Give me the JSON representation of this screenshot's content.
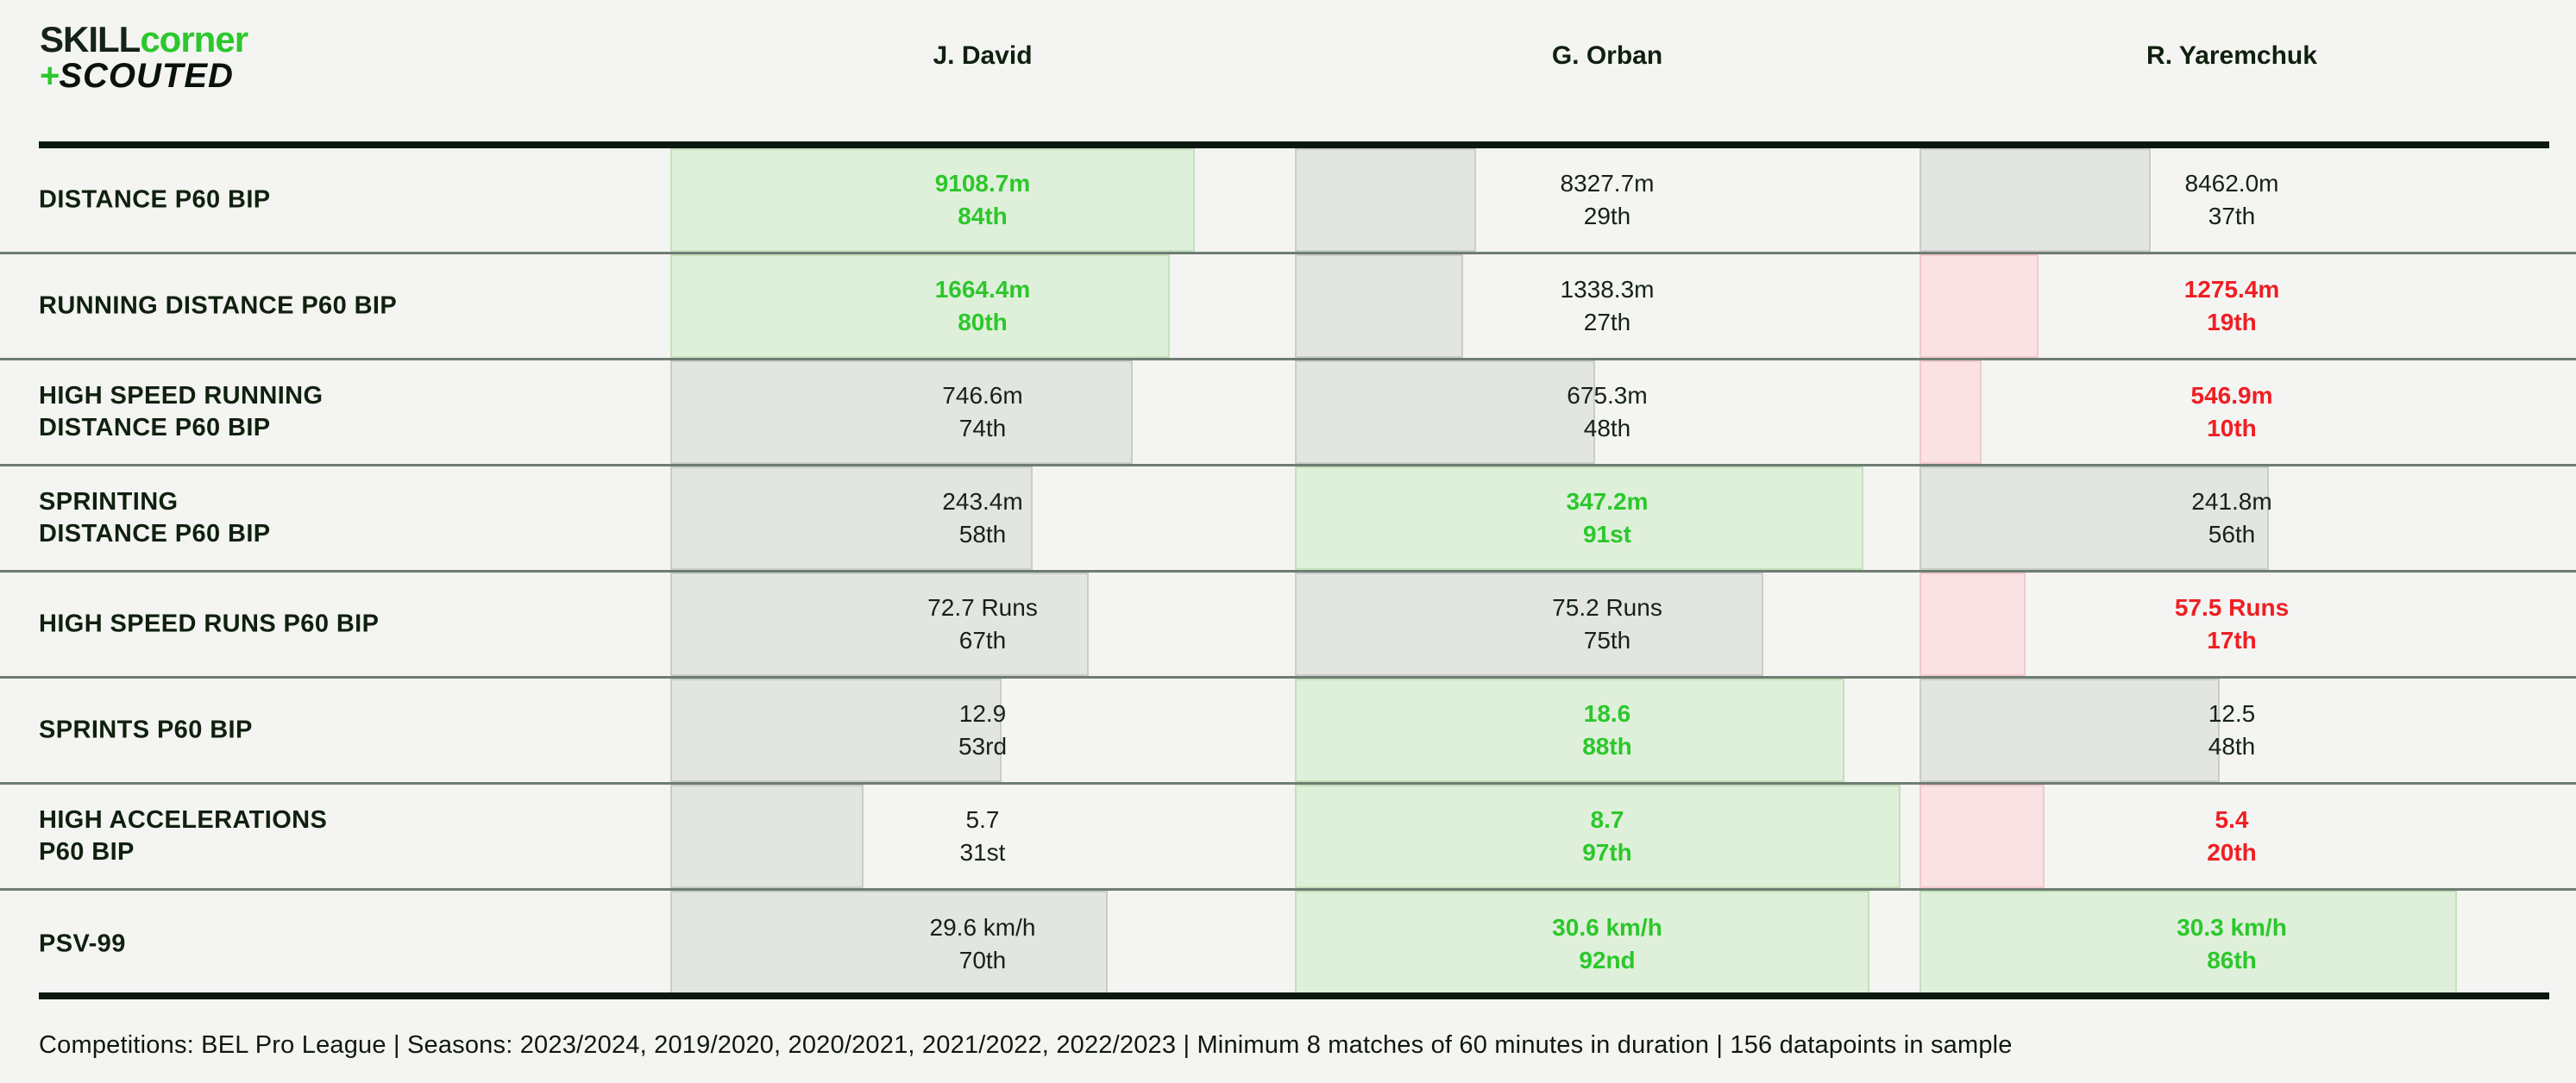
{
  "logo": {
    "line1_dark": "SKILL",
    "line1_green": "corner",
    "plus": "+",
    "line2": "SCOUTED"
  },
  "players": [
    "J. David",
    "G. Orban",
    "R. Yaremchuk"
  ],
  "footer_text": "Competitions: BEL Pro League | Seasons: 2023/2024, 2019/2020, 2020/2021, 2021/2022, 2022/2023 | Minimum 8 matches of 60 minutes in duration | 156 datapoints in sample",
  "colors": {
    "accent_green": "#2cc72c",
    "accent_red": "#f01e23",
    "dark": "#0e1c12",
    "bar_good_fill": "#dff0da",
    "bar_neutral_fill": "#e2e5e1",
    "bar_bad_fill": "#f9e1e4",
    "background": "#f4f5f2"
  },
  "chart_data": {
    "type": "bar",
    "orientation": "horizontal",
    "scale": "bar width = percentile of 0-100 column width",
    "legend_position": "none",
    "grid": false,
    "columns": [
      "J. David",
      "G. Orban",
      "R. Yaremchuk"
    ],
    "metrics": [
      {
        "label_lines": [
          "DISTANCE P60 BIP"
        ],
        "cells": [
          {
            "value": "9108.7m",
            "percentile": 84,
            "rank_label": "84th",
            "status": "good"
          },
          {
            "value": "8327.7m",
            "percentile": 29,
            "rank_label": "29th",
            "status": "neutral"
          },
          {
            "value": "8462.0m",
            "percentile": 37,
            "rank_label": "37th",
            "status": "neutral"
          }
        ]
      },
      {
        "label_lines": [
          "RUNNING DISTANCE P60 BIP"
        ],
        "cells": [
          {
            "value": "1664.4m",
            "percentile": 80,
            "rank_label": "80th",
            "status": "good"
          },
          {
            "value": "1338.3m",
            "percentile": 27,
            "rank_label": "27th",
            "status": "neutral"
          },
          {
            "value": "1275.4m",
            "percentile": 19,
            "rank_label": "19th",
            "status": "bad"
          }
        ]
      },
      {
        "label_lines": [
          "HIGH SPEED RUNNING",
          "DISTANCE P60 BIP"
        ],
        "cells": [
          {
            "value": "746.6m",
            "percentile": 74,
            "rank_label": "74th",
            "status": "neutral"
          },
          {
            "value": "675.3m",
            "percentile": 48,
            "rank_label": "48th",
            "status": "neutral"
          },
          {
            "value": "546.9m",
            "percentile": 10,
            "rank_label": "10th",
            "status": "bad"
          }
        ]
      },
      {
        "label_lines": [
          "SPRINTING",
          "DISTANCE P60 BIP"
        ],
        "cells": [
          {
            "value": "243.4m",
            "percentile": 58,
            "rank_label": "58th",
            "status": "neutral"
          },
          {
            "value": "347.2m",
            "percentile": 91,
            "rank_label": "91st",
            "status": "good"
          },
          {
            "value": "241.8m",
            "percentile": 56,
            "rank_label": "56th",
            "status": "neutral"
          }
        ]
      },
      {
        "label_lines": [
          "HIGH SPEED RUNS P60 BIP"
        ],
        "cells": [
          {
            "value": "72.7 Runs",
            "percentile": 67,
            "rank_label": "67th",
            "status": "neutral"
          },
          {
            "value": "75.2 Runs",
            "percentile": 75,
            "rank_label": "75th",
            "status": "neutral"
          },
          {
            "value": "57.5 Runs",
            "percentile": 17,
            "rank_label": "17th",
            "status": "bad"
          }
        ]
      },
      {
        "label_lines": [
          "SPRINTS P60 BIP"
        ],
        "cells": [
          {
            "value": "12.9",
            "percentile": 53,
            "rank_label": "53rd",
            "status": "neutral"
          },
          {
            "value": "18.6",
            "percentile": 88,
            "rank_label": "88th",
            "status": "good"
          },
          {
            "value": "12.5",
            "percentile": 48,
            "rank_label": "48th",
            "status": "neutral"
          }
        ]
      },
      {
        "label_lines": [
          "HIGH ACCELERATIONS",
          "P60 BIP"
        ],
        "cells": [
          {
            "value": "5.7",
            "percentile": 31,
            "rank_label": "31st",
            "status": "neutral"
          },
          {
            "value": "8.7",
            "percentile": 97,
            "rank_label": "97th",
            "status": "good"
          },
          {
            "value": "5.4",
            "percentile": 20,
            "rank_label": "20th",
            "status": "bad"
          }
        ]
      },
      {
        "label_lines": [
          "PSV-99"
        ],
        "cells": [
          {
            "value": "29.6 km/h",
            "percentile": 70,
            "rank_label": "70th",
            "status": "neutral"
          },
          {
            "value": "30.6 km/h",
            "percentile": 92,
            "rank_label": "92nd",
            "status": "good"
          },
          {
            "value": "30.3 km/h",
            "percentile": 86,
            "rank_label": "86th",
            "status": "good"
          }
        ]
      }
    ]
  }
}
